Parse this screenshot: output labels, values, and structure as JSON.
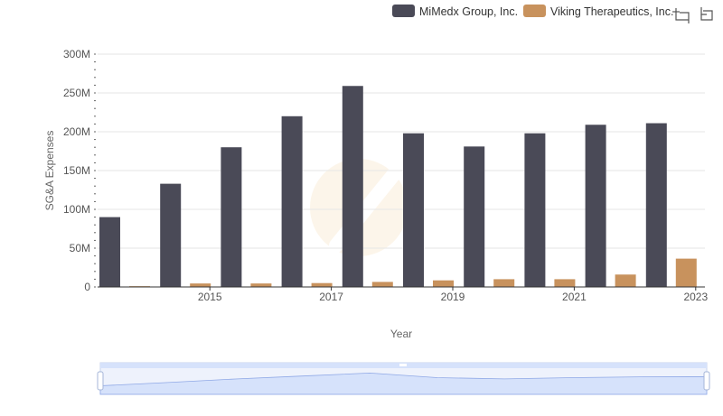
{
  "chart_data": {
    "type": "bar",
    "title": "",
    "xlabel": "Year",
    "ylabel": "SG&A Expenses",
    "categories": [
      "2014",
      "2015",
      "2016",
      "2017",
      "2018",
      "2019",
      "2020",
      "2021",
      "2022",
      "2023"
    ],
    "x_tick_labels": [
      "2015",
      "2017",
      "2019",
      "2021",
      "2023"
    ],
    "y_tick_labels": [
      "0",
      "50M",
      "100M",
      "150M",
      "200M",
      "250M",
      "300M"
    ],
    "ylim": [
      0,
      300000000
    ],
    "y_ticks": [
      0,
      50000000,
      100000000,
      150000000,
      200000000,
      250000000,
      300000000
    ],
    "legend_position": "top-right",
    "series": [
      {
        "name": "MiMedx Group, Inc.",
        "color": "#4a4a57",
        "values": [
          90000000,
          133000000,
          180000000,
          220000000,
          259000000,
          198000000,
          181000000,
          198000000,
          209000000,
          211000000
        ]
      },
      {
        "name": "Viking Therapeutics, Inc.",
        "color": "#c8925d",
        "values": [
          1000000,
          4500000,
          4500000,
          5000000,
          6500000,
          8500000,
          10000000,
          10000000,
          16000000,
          36500000
        ]
      }
    ]
  },
  "toolbar": {
    "zoom_icon": "crop-zoom-icon",
    "reset_icon": "restore-icon"
  },
  "colors": {
    "grid": "#e6e6e6",
    "axis": "#333333",
    "slider_fill": "#d6e2fb",
    "slider_border": "#c7d3ee",
    "slider_line": "#8fa8e6"
  }
}
